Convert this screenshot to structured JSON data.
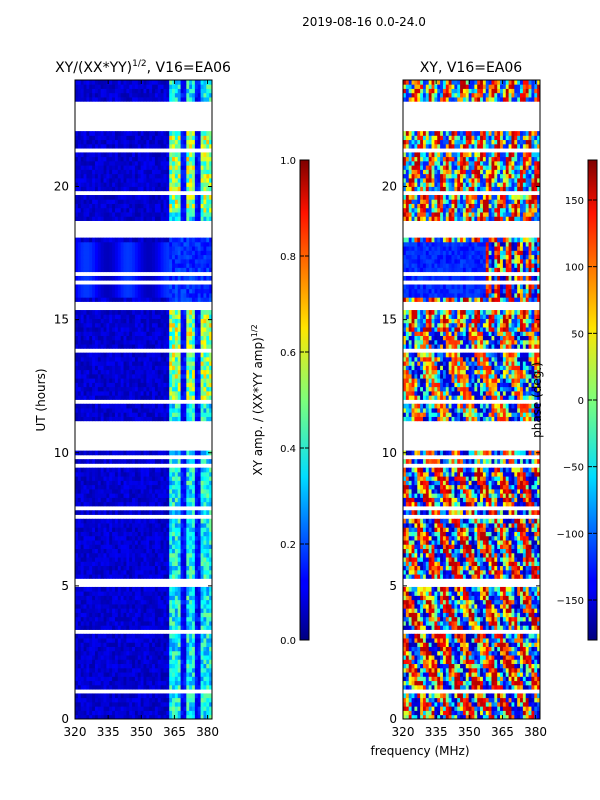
{
  "suptitle": "2019-08-16 0.0-24.0",
  "chart_data": [
    {
      "type": "heatmap",
      "title_main": "XY/(XX*YY)",
      "title_sup": "1/2",
      "title_tail": ", V16=EA06",
      "xlabel": "",
      "ylabel": "UT (hours)",
      "xlim": [
        320,
        382
      ],
      "ylim": [
        0,
        24
      ],
      "xticks": [
        320,
        335,
        350,
        365,
        380
      ],
      "yticks": [
        0,
        5,
        10,
        15,
        20
      ],
      "colorbar": {
        "label_main": "XY amp. / (XX*YY amp)",
        "label_sup": "1/2",
        "range": [
          0.0,
          1.0
        ],
        "ticks": [
          "0.0",
          "0.2",
          "0.4",
          "0.6",
          "0.8",
          "1.0"
        ]
      }
    },
    {
      "type": "heatmap",
      "title": "XY, V16=EA06",
      "xlabel": "frequency (MHz)",
      "ylabel": "",
      "xlim": [
        320,
        382
      ],
      "ylim": [
        0,
        24
      ],
      "xticks": [
        320,
        335,
        350,
        365,
        380
      ],
      "yticks": [
        0,
        5,
        10,
        15,
        20
      ],
      "colorbar": {
        "label": "phase (deg.)",
        "range": [
          -180,
          180
        ],
        "ticks": [
          "−150",
          "−100",
          "−50",
          "0",
          "50",
          "100",
          "150"
        ]
      }
    }
  ]
}
